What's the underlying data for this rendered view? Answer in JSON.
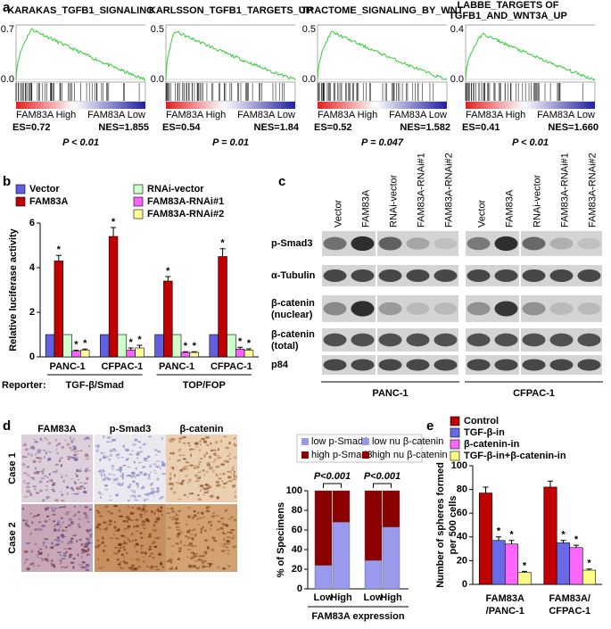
{
  "panels": [
    "a",
    "b",
    "c",
    "d",
    "e"
  ],
  "gsea": [
    {
      "title": [
        "KARAKAS_TGFB1_SIGNALING"
      ],
      "yticks": [
        "0.7",
        "0.0"
      ],
      "high": "FAM83A High",
      "low": "FAM83A  Low",
      "es": "ES=0.72",
      "nes": "NES=1.855",
      "p": "P < 0.01"
    },
    {
      "title": [
        "KARLSSON_TGFB1_TARGETS_UP"
      ],
      "yticks": [
        "0.5",
        "0.0"
      ],
      "high": "FAM83A High",
      "low": "FAM83A  Low",
      "es": "ES=0.54",
      "nes": "NES=1.84",
      "p": "P = 0.01"
    },
    {
      "title": [
        "TRACTOME_SIGNALING_BY_WNT"
      ],
      "yticks": [
        "0.5",
        "0.0"
      ],
      "high": "FAM83A High",
      "low": "FAM83A  Low",
      "es": "ES=0.52",
      "nes": "NES=1.582",
      "p": "P = 0.047"
    },
    {
      "title": [
        "LABBE_TARGETS OF",
        "TGFB1_AND_WNT3A_UP"
      ],
      "yticks": [
        "0.4",
        "0.0"
      ],
      "high": "FAM83A High",
      "low": "FAM83A  Low",
      "es": "ES=0.41",
      "nes": "NES=1.660",
      "p": "P < 0.01"
    }
  ],
  "blot": {
    "lanes": [
      "Vector",
      "FAM83A",
      "RNAi-vector",
      "FAM83A-RNAi#1",
      "FAM83A-RNAi#2"
    ],
    "rows": [
      [
        "p-Smad3"
      ],
      [
        "α-Tubulin"
      ],
      [
        "β-catenin",
        "(nuclear)"
      ],
      [
        "β-catenin",
        "(total)"
      ],
      [
        "p84"
      ]
    ],
    "cell_lines": [
      "PANC-1",
      "CFPAC-1"
    ]
  },
  "ihc": {
    "columns": [
      "FAM83A",
      "p-Smad3",
      "β-catenin"
    ],
    "rows": [
      "Case 1",
      "Case 2"
    ]
  },
  "chart_data": [
    {
      "type": "bar",
      "y_label": "Relative luciferase activity",
      "categories": [
        "PANC-1",
        "CFPAC-1",
        "PANC-1",
        "CFPAC-1"
      ],
      "x_group_title": "Reporter:",
      "x_groups": [
        "TGF-β/Smad",
        "TOP/FOP"
      ],
      "ylim": [
        0,
        6
      ],
      "yticks": [
        0,
        2,
        4,
        6
      ],
      "series": [
        {
          "name": "Vector",
          "color": "#6060e0",
          "values": [
            1,
            1,
            1,
            1
          ]
        },
        {
          "name": "FAM83A",
          "color": "#c00000",
          "values": [
            4.3,
            5.4,
            3.4,
            4.5
          ],
          "errors": [
            0.25,
            0.4,
            0.2,
            0.35
          ],
          "annotation": "*"
        },
        {
          "name": "RNAi-vector",
          "color": "#ccffcc",
          "values": [
            1,
            1,
            1,
            1
          ]
        },
        {
          "name": "FAM83A-RNAi#1",
          "color": "#ff60ff",
          "values": [
            0.25,
            0.3,
            0.2,
            0.35
          ],
          "errors": [
            0.05,
            0.1,
            0.03,
            0.08
          ],
          "annotation": "*"
        },
        {
          "name": "FAM83A-RNAi#2",
          "color": "#ffff99",
          "values": [
            0.3,
            0.4,
            0.2,
            0.3
          ],
          "errors": [
            0.05,
            0.12,
            0.03,
            0.06
          ],
          "annotation": "*"
        }
      ]
    },
    {
      "type": "stacked_bar",
      "y_label": "% of Specimens",
      "x_label": "FAM83A expression",
      "categories": [
        "Low",
        "High",
        "Low",
        "High"
      ],
      "annotations": [
        "P<0.001",
        "P<0.001"
      ],
      "ylim": [
        0,
        100
      ],
      "yticks": [
        0,
        20,
        40,
        60,
        80,
        100
      ],
      "series": [
        {
          "name": "low p-Smad3",
          "color": "#9999ee",
          "values": [
            24,
            68,
            null,
            null
          ]
        },
        {
          "name": "high p-Smad3",
          "color": "#8b0000",
          "values": [
            76,
            32,
            null,
            null
          ]
        },
        {
          "name": "low nu β-catenin",
          "color": "#9999ee",
          "values": [
            null,
            null,
            29,
            63
          ]
        },
        {
          "name": "high nu β-catenin",
          "color": "#8b0000",
          "values": [
            null,
            null,
            71,
            37
          ]
        }
      ]
    },
    {
      "type": "bar",
      "y_label": [
        "Number of spheres formed",
        "per 500 cells"
      ],
      "categories": [
        [
          "FAM83A",
          "/PANC-1"
        ],
        [
          "FAM83A/",
          "CFPAC-1"
        ]
      ],
      "ylim": [
        0,
        100
      ],
      "yticks": [
        0,
        20,
        40,
        60,
        80,
        100
      ],
      "series": [
        {
          "name": "Control",
          "color": "#c00000",
          "values": [
            77,
            82
          ],
          "errors": [
            5,
            5
          ]
        },
        {
          "name": "TGF-β-in",
          "color": "#6a6ae8",
          "values": [
            37,
            35
          ],
          "errors": [
            3,
            2
          ],
          "annotation": "*"
        },
        {
          "name": "β-catenin-in",
          "color": "#ff66ff",
          "values": [
            34,
            31
          ],
          "errors": [
            3,
            2
          ],
          "annotation": "*"
        },
        {
          "name": "TGF-β-in+β-catenin-in",
          "color": "#ffff88",
          "values": [
            10,
            12
          ],
          "errors": [
            1,
            1
          ],
          "annotation": "*"
        }
      ]
    }
  ]
}
